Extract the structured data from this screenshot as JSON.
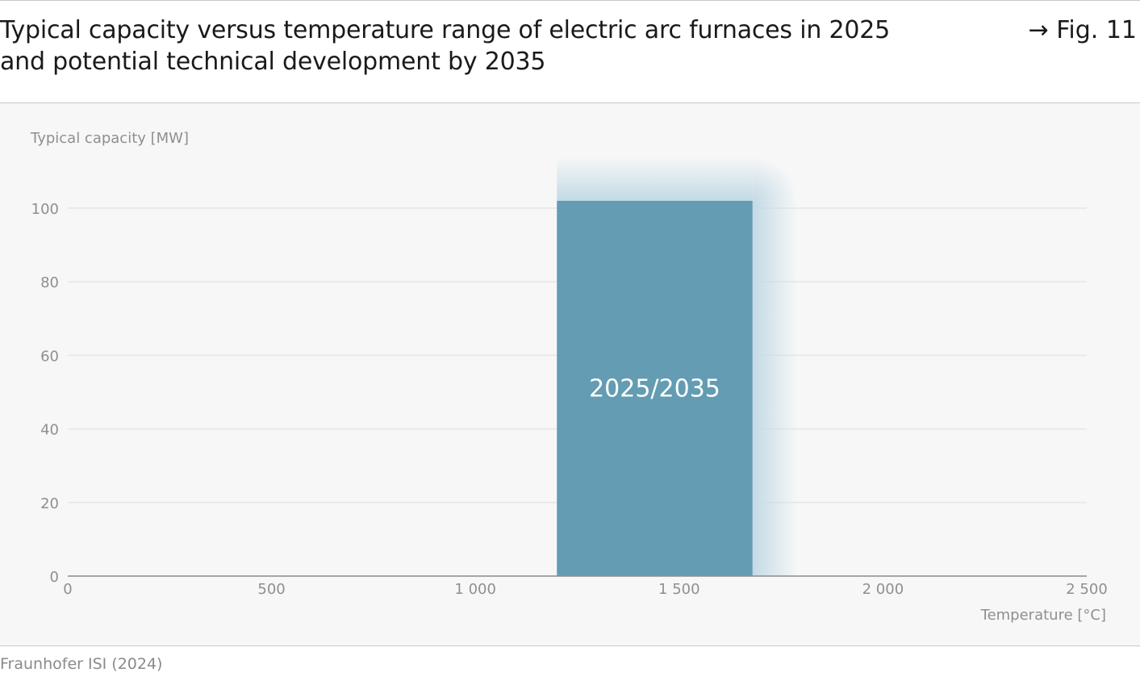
{
  "header": {
    "title_line1": "Typical capacity versus temperature range of electric arc furnaces in 2025",
    "title_line2": "and potential technical development by 2035",
    "fig_ref": "→ Fig. 11"
  },
  "source": "Fraunhofer ISI (2024)",
  "colors": {
    "bar": "#639cb3",
    "halo": "#c3dae6",
    "grid": "#e6e6e6",
    "axis": "#8c8c8c",
    "text": "#8f8f8f"
  },
  "chart_data": {
    "type": "bar",
    "title": "Typical capacity versus temperature range of electric arc furnaces in 2025 and potential technical development by 2035",
    "xlabel": "Temperature [°C]",
    "ylabel": "Typical capacity [MW]",
    "xlim": [
      0,
      2500
    ],
    "ylim": [
      0,
      100
    ],
    "x_ticks": [
      0,
      500,
      1000,
      1500,
      2000,
      2500
    ],
    "x_tick_labels": [
      "0",
      "500",
      "1 000",
      "1 500",
      "2 000",
      "2 500"
    ],
    "y_ticks": [
      0,
      20,
      40,
      60,
      80,
      100
    ],
    "y_tick_labels": [
      "0",
      "20",
      "40",
      "60",
      "80",
      "100"
    ],
    "grid": true,
    "ranges": [
      {
        "label": "2025/2035",
        "x_start": 1200,
        "x_end": 1680,
        "y_start": 0,
        "y_end": 102
      },
      {
        "label": "",
        "x_start": 1200,
        "x_end": 1790,
        "y_start": 0,
        "y_end": 114
      }
    ]
  }
}
